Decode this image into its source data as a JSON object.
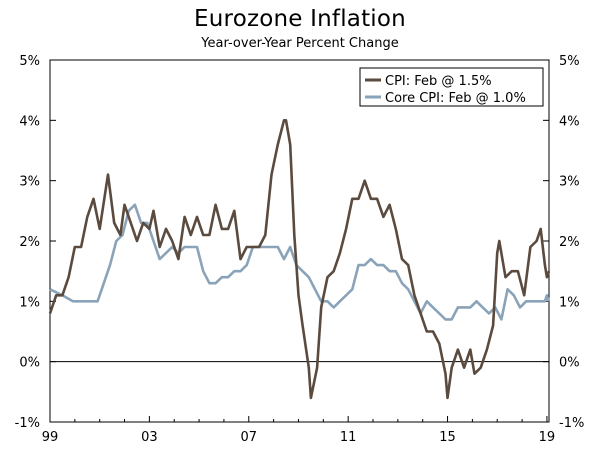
{
  "chart_data": {
    "type": "line",
    "title": "Eurozone Inflation",
    "subtitle": "Year-over-Year Percent Change",
    "xlabel": "",
    "ylabel": "",
    "x_tick_labels": [
      "99",
      "03",
      "07",
      "11",
      "15",
      "19"
    ],
    "x_tick_years": [
      1999,
      2003,
      2007,
      2011,
      2015,
      2019
    ],
    "xlim": [
      "1999-01",
      "2019-02"
    ],
    "ylim": [
      -1,
      5
    ],
    "y_tick_labels_left": [
      "5%",
      "4%",
      "3%",
      "2%",
      "1%",
      "0%",
      "-1%"
    ],
    "y_tick_labels_right": [
      "5%",
      "4%",
      "3%",
      "2%",
      "1%",
      "0%",
      "-1%"
    ],
    "y_tick_values": [
      5,
      4,
      3,
      2,
      1,
      0,
      -1
    ],
    "grid": false,
    "zero_line": true,
    "legend_position": "top-right",
    "series": [
      {
        "name": "CPI: Feb @ 1.5%",
        "color": "#5b4a3e",
        "points": [
          [
            "1999-01",
            0.8
          ],
          [
            "1999-04",
            1.1
          ],
          [
            "1999-07",
            1.1
          ],
          [
            "1999-10",
            1.4
          ],
          [
            "2000-01",
            1.9
          ],
          [
            "2000-04",
            1.9
          ],
          [
            "2000-07",
            2.4
          ],
          [
            "2000-10",
            2.7
          ],
          [
            "2001-01",
            2.2
          ],
          [
            "2001-05",
            3.1
          ],
          [
            "2001-08",
            2.3
          ],
          [
            "2001-11",
            2.1
          ],
          [
            "2002-01",
            2.6
          ],
          [
            "2002-04",
            2.3
          ],
          [
            "2002-07",
            2.0
          ],
          [
            "2002-10",
            2.3
          ],
          [
            "2003-01",
            2.2
          ],
          [
            "2003-03",
            2.5
          ],
          [
            "2003-06",
            1.9
          ],
          [
            "2003-09",
            2.2
          ],
          [
            "2003-12",
            2.0
          ],
          [
            "2004-03",
            1.7
          ],
          [
            "2004-06",
            2.4
          ],
          [
            "2004-09",
            2.1
          ],
          [
            "2004-12",
            2.4
          ],
          [
            "2005-03",
            2.1
          ],
          [
            "2005-06",
            2.1
          ],
          [
            "2005-09",
            2.6
          ],
          [
            "2005-12",
            2.2
          ],
          [
            "2006-03",
            2.2
          ],
          [
            "2006-06",
            2.5
          ],
          [
            "2006-09",
            1.7
          ],
          [
            "2006-12",
            1.9
          ],
          [
            "2007-03",
            1.9
          ],
          [
            "2007-06",
            1.9
          ],
          [
            "2007-09",
            2.1
          ],
          [
            "2007-12",
            3.1
          ],
          [
            "2008-03",
            3.6
          ],
          [
            "2008-06",
            4.0
          ],
          [
            "2008-07",
            4.0
          ],
          [
            "2008-09",
            3.6
          ],
          [
            "2008-11",
            2.1
          ],
          [
            "2009-01",
            1.1
          ],
          [
            "2009-03",
            0.6
          ],
          [
            "2009-06",
            -0.1
          ],
          [
            "2009-07",
            -0.6
          ],
          [
            "2009-10",
            -0.1
          ],
          [
            "2009-12",
            0.9
          ],
          [
            "2010-03",
            1.4
          ],
          [
            "2010-06",
            1.5
          ],
          [
            "2010-09",
            1.8
          ],
          [
            "2010-12",
            2.2
          ],
          [
            "2011-03",
            2.7
          ],
          [
            "2011-06",
            2.7
          ],
          [
            "2011-09",
            3.0
          ],
          [
            "2011-12",
            2.7
          ],
          [
            "2012-03",
            2.7
          ],
          [
            "2012-06",
            2.4
          ],
          [
            "2012-09",
            2.6
          ],
          [
            "2012-12",
            2.2
          ],
          [
            "2013-03",
            1.7
          ],
          [
            "2013-06",
            1.6
          ],
          [
            "2013-09",
            1.1
          ],
          [
            "2013-12",
            0.8
          ],
          [
            "2014-03",
            0.5
          ],
          [
            "2014-06",
            0.5
          ],
          [
            "2014-09",
            0.3
          ],
          [
            "2014-12",
            -0.2
          ],
          [
            "2015-01",
            -0.6
          ],
          [
            "2015-03",
            -0.1
          ],
          [
            "2015-06",
            0.2
          ],
          [
            "2015-09",
            -0.1
          ],
          [
            "2015-12",
            0.2
          ],
          [
            "2016-02",
            -0.2
          ],
          [
            "2016-05",
            -0.1
          ],
          [
            "2016-08",
            0.2
          ],
          [
            "2016-11",
            0.6
          ],
          [
            "2017-01",
            1.8
          ],
          [
            "2017-02",
            2.0
          ],
          [
            "2017-05",
            1.4
          ],
          [
            "2017-08",
            1.5
          ],
          [
            "2017-11",
            1.5
          ],
          [
            "2018-02",
            1.1
          ],
          [
            "2018-05",
            1.9
          ],
          [
            "2018-08",
            2.0
          ],
          [
            "2018-10",
            2.2
          ],
          [
            "2018-12",
            1.6
          ],
          [
            "2019-01",
            1.4
          ],
          [
            "2019-02",
            1.5
          ]
        ]
      },
      {
        "name": "Core CPI: Feb @ 1.0%",
        "color": "#8aa3b8",
        "points": [
          [
            "1999-01",
            1.2
          ],
          [
            "1999-07",
            1.1
          ],
          [
            "1999-12",
            1.0
          ],
          [
            "2000-06",
            1.0
          ],
          [
            "2000-12",
            1.0
          ],
          [
            "2001-03",
            1.3
          ],
          [
            "2001-06",
            1.6
          ],
          [
            "2001-09",
            2.0
          ],
          [
            "2001-12",
            2.1
          ],
          [
            "2002-03",
            2.5
          ],
          [
            "2002-06",
            2.6
          ],
          [
            "2002-09",
            2.3
          ],
          [
            "2002-12",
            2.3
          ],
          [
            "2003-03",
            2.0
          ],
          [
            "2003-06",
            1.7
          ],
          [
            "2003-09",
            1.8
          ],
          [
            "2003-12",
            1.9
          ],
          [
            "2004-03",
            1.8
          ],
          [
            "2004-06",
            1.9
          ],
          [
            "2004-09",
            1.9
          ],
          [
            "2004-12",
            1.9
          ],
          [
            "2005-03",
            1.5
          ],
          [
            "2005-06",
            1.3
          ],
          [
            "2005-09",
            1.3
          ],
          [
            "2005-12",
            1.4
          ],
          [
            "2006-03",
            1.4
          ],
          [
            "2006-06",
            1.5
          ],
          [
            "2006-09",
            1.5
          ],
          [
            "2006-12",
            1.6
          ],
          [
            "2007-03",
            1.9
          ],
          [
            "2007-06",
            1.9
          ],
          [
            "2007-09",
            1.9
          ],
          [
            "2007-12",
            1.9
          ],
          [
            "2008-03",
            1.9
          ],
          [
            "2008-06",
            1.7
          ],
          [
            "2008-09",
            1.9
          ],
          [
            "2008-12",
            1.6
          ],
          [
            "2009-03",
            1.5
          ],
          [
            "2009-06",
            1.4
          ],
          [
            "2009-09",
            1.2
          ],
          [
            "2009-12",
            1.0
          ],
          [
            "2010-03",
            1.0
          ],
          [
            "2010-06",
            0.9
          ],
          [
            "2010-09",
            1.0
          ],
          [
            "2010-12",
            1.1
          ],
          [
            "2011-03",
            1.2
          ],
          [
            "2011-06",
            1.6
          ],
          [
            "2011-09",
            1.6
          ],
          [
            "2011-12",
            1.7
          ],
          [
            "2012-03",
            1.6
          ],
          [
            "2012-06",
            1.6
          ],
          [
            "2012-09",
            1.5
          ],
          [
            "2012-12",
            1.5
          ],
          [
            "2013-03",
            1.3
          ],
          [
            "2013-06",
            1.2
          ],
          [
            "2013-09",
            1.0
          ],
          [
            "2013-12",
            0.8
          ],
          [
            "2014-03",
            1.0
          ],
          [
            "2014-06",
            0.9
          ],
          [
            "2014-09",
            0.8
          ],
          [
            "2014-12",
            0.7
          ],
          [
            "2015-03",
            0.7
          ],
          [
            "2015-06",
            0.9
          ],
          [
            "2015-09",
            0.9
          ],
          [
            "2015-12",
            0.9
          ],
          [
            "2016-03",
            1.0
          ],
          [
            "2016-06",
            0.9
          ],
          [
            "2016-09",
            0.8
          ],
          [
            "2016-12",
            0.9
          ],
          [
            "2017-03",
            0.7
          ],
          [
            "2017-06",
            1.2
          ],
          [
            "2017-09",
            1.1
          ],
          [
            "2017-12",
            0.9
          ],
          [
            "2018-03",
            1.0
          ],
          [
            "2018-06",
            1.0
          ],
          [
            "2018-09",
            1.0
          ],
          [
            "2018-12",
            1.0
          ],
          [
            "2019-01",
            1.1
          ],
          [
            "2019-02",
            1.0
          ]
        ]
      }
    ]
  }
}
